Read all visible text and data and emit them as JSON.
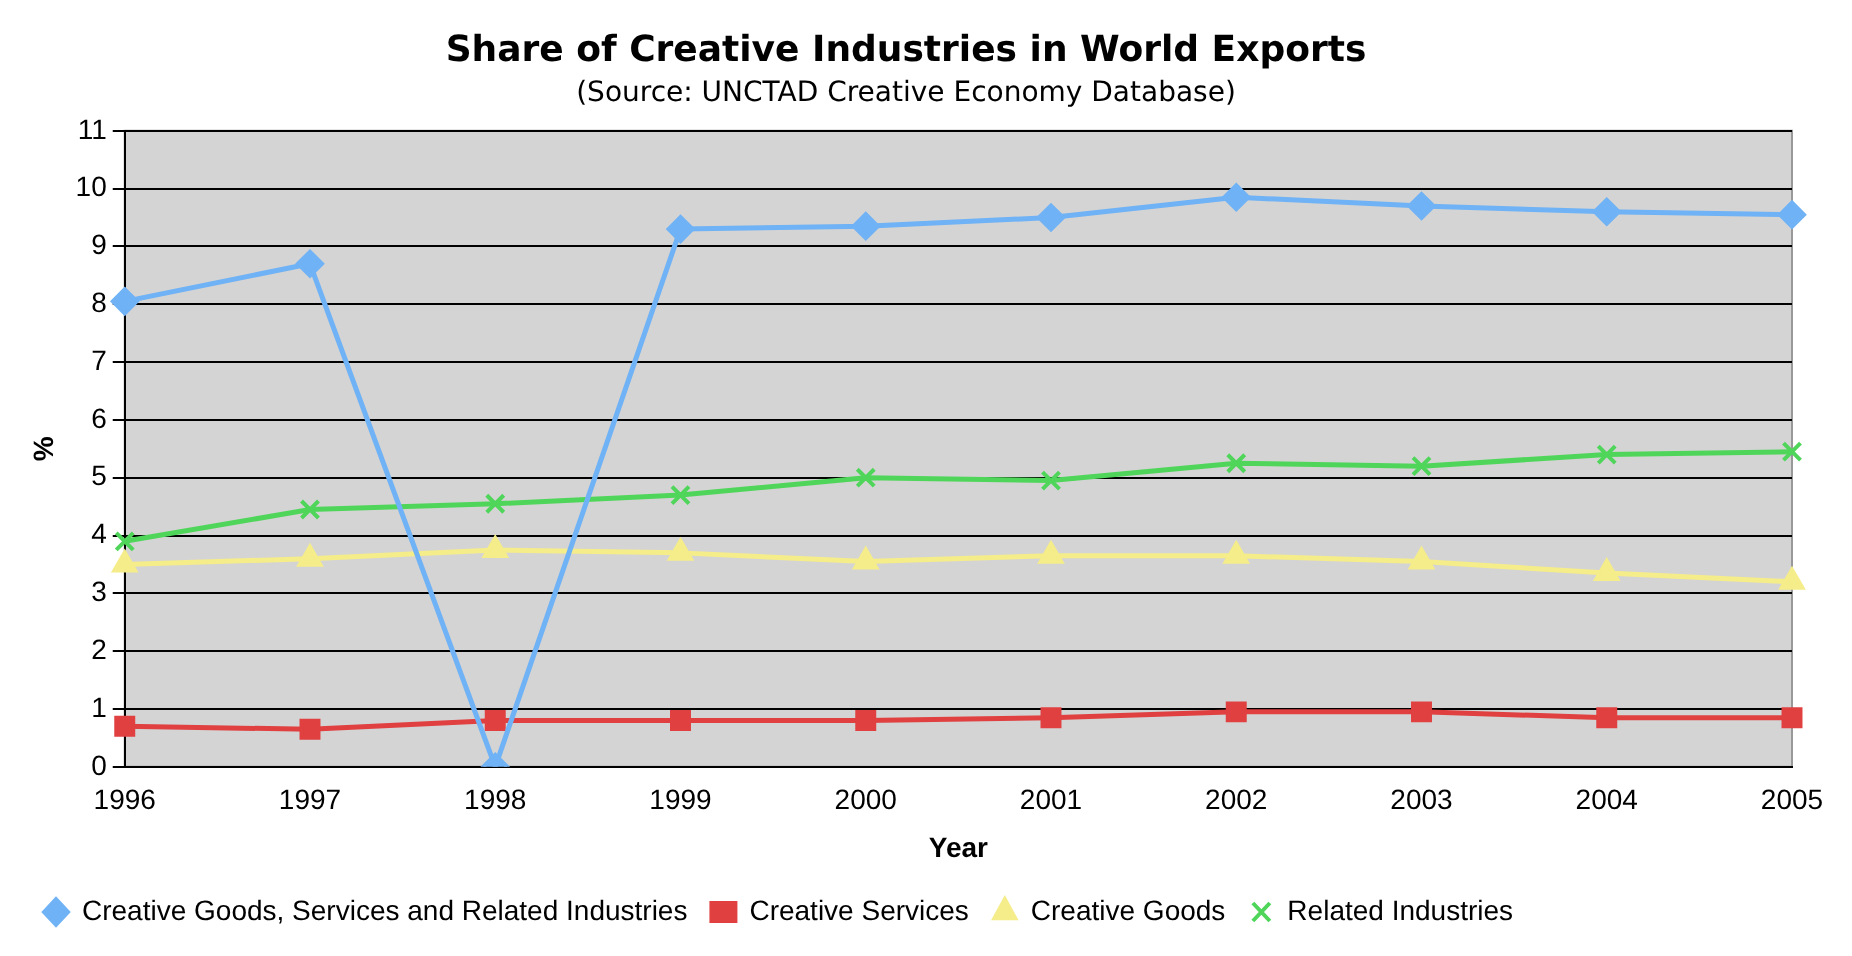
{
  "chart_data": {
    "type": "line",
    "title": "Share of Creative Industries in World Exports",
    "subtitle": "(Source: UNCTAD Creative Economy Database)",
    "xlabel": "Year",
    "ylabel": "%",
    "categories": [
      "1996",
      "1997",
      "1998",
      "1999",
      "2000",
      "2001",
      "2002",
      "2003",
      "2004",
      "2005"
    ],
    "ylim": [
      0,
      11
    ],
    "yticks": [
      0,
      1,
      2,
      3,
      4,
      5,
      6,
      7,
      8,
      9,
      10,
      11
    ],
    "grid": "y",
    "legend": "bottom",
    "series": [
      {
        "name": "Creative Goods, Services and Related Industries",
        "color": "#6fb2f5",
        "marker": "diamond",
        "values": [
          8.05,
          8.7,
          0,
          9.3,
          9.35,
          9.5,
          9.85,
          9.7,
          9.6,
          9.55
        ]
      },
      {
        "name": "Creative Services",
        "color": "#e04040",
        "marker": "square",
        "values": [
          0.7,
          0.65,
          0.8,
          0.8,
          0.8,
          0.85,
          0.95,
          0.95,
          0.85,
          0.85
        ]
      },
      {
        "name": "Creative Goods",
        "color": "#f5ec8a",
        "marker": "triangle",
        "values": [
          3.5,
          3.6,
          3.75,
          3.7,
          3.55,
          3.65,
          3.65,
          3.55,
          3.35,
          3.2
        ]
      },
      {
        "name": "Related Industries",
        "color": "#4fd65a",
        "marker": "cross",
        "values": [
          3.9,
          4.45,
          4.55,
          4.7,
          5.0,
          4.95,
          5.25,
          5.2,
          5.4,
          5.45
        ]
      }
    ]
  }
}
